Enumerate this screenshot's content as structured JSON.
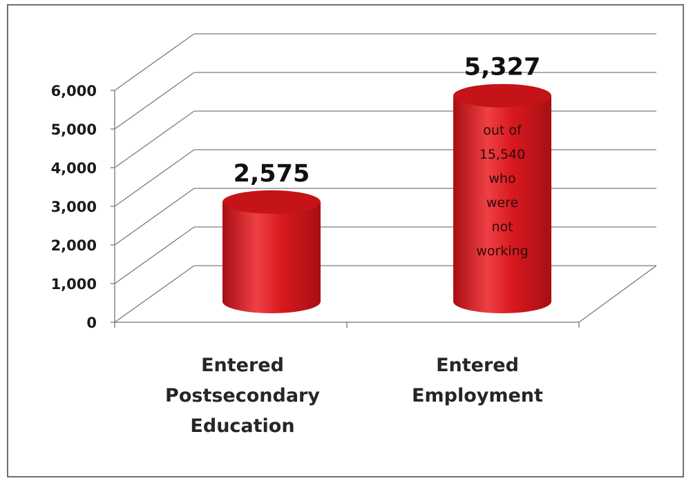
{
  "chart_data": {
    "type": "bar",
    "categories": [
      "Entered Postsecondary Education",
      "Entered Employment"
    ],
    "category_lines": [
      [
        "Entered",
        "Postsecondary",
        "Education"
      ],
      [
        "Entered",
        "Employment"
      ]
    ],
    "values": [
      2575,
      5327
    ],
    "value_labels": [
      "2,575",
      "5,327"
    ],
    "bar_notes": [
      [],
      [
        "out of",
        "15,540",
        "who",
        "were",
        "not",
        "working"
      ]
    ],
    "ylim": [
      0,
      6000
    ],
    "yticks": [
      0,
      1000,
      2000,
      3000,
      4000,
      5000,
      6000
    ],
    "ytick_labels": [
      "0",
      "1,000",
      "2,000",
      "3,000",
      "4,000",
      "5,000",
      "6,000"
    ],
    "grid": true,
    "style": "3d-cylinder",
    "colors": {
      "bar": "#d8191f",
      "bar_dark": "#a80f14",
      "bar_light": "#ee4045",
      "bar_top": "#c41418",
      "grid": "#7a7a7a"
    }
  }
}
